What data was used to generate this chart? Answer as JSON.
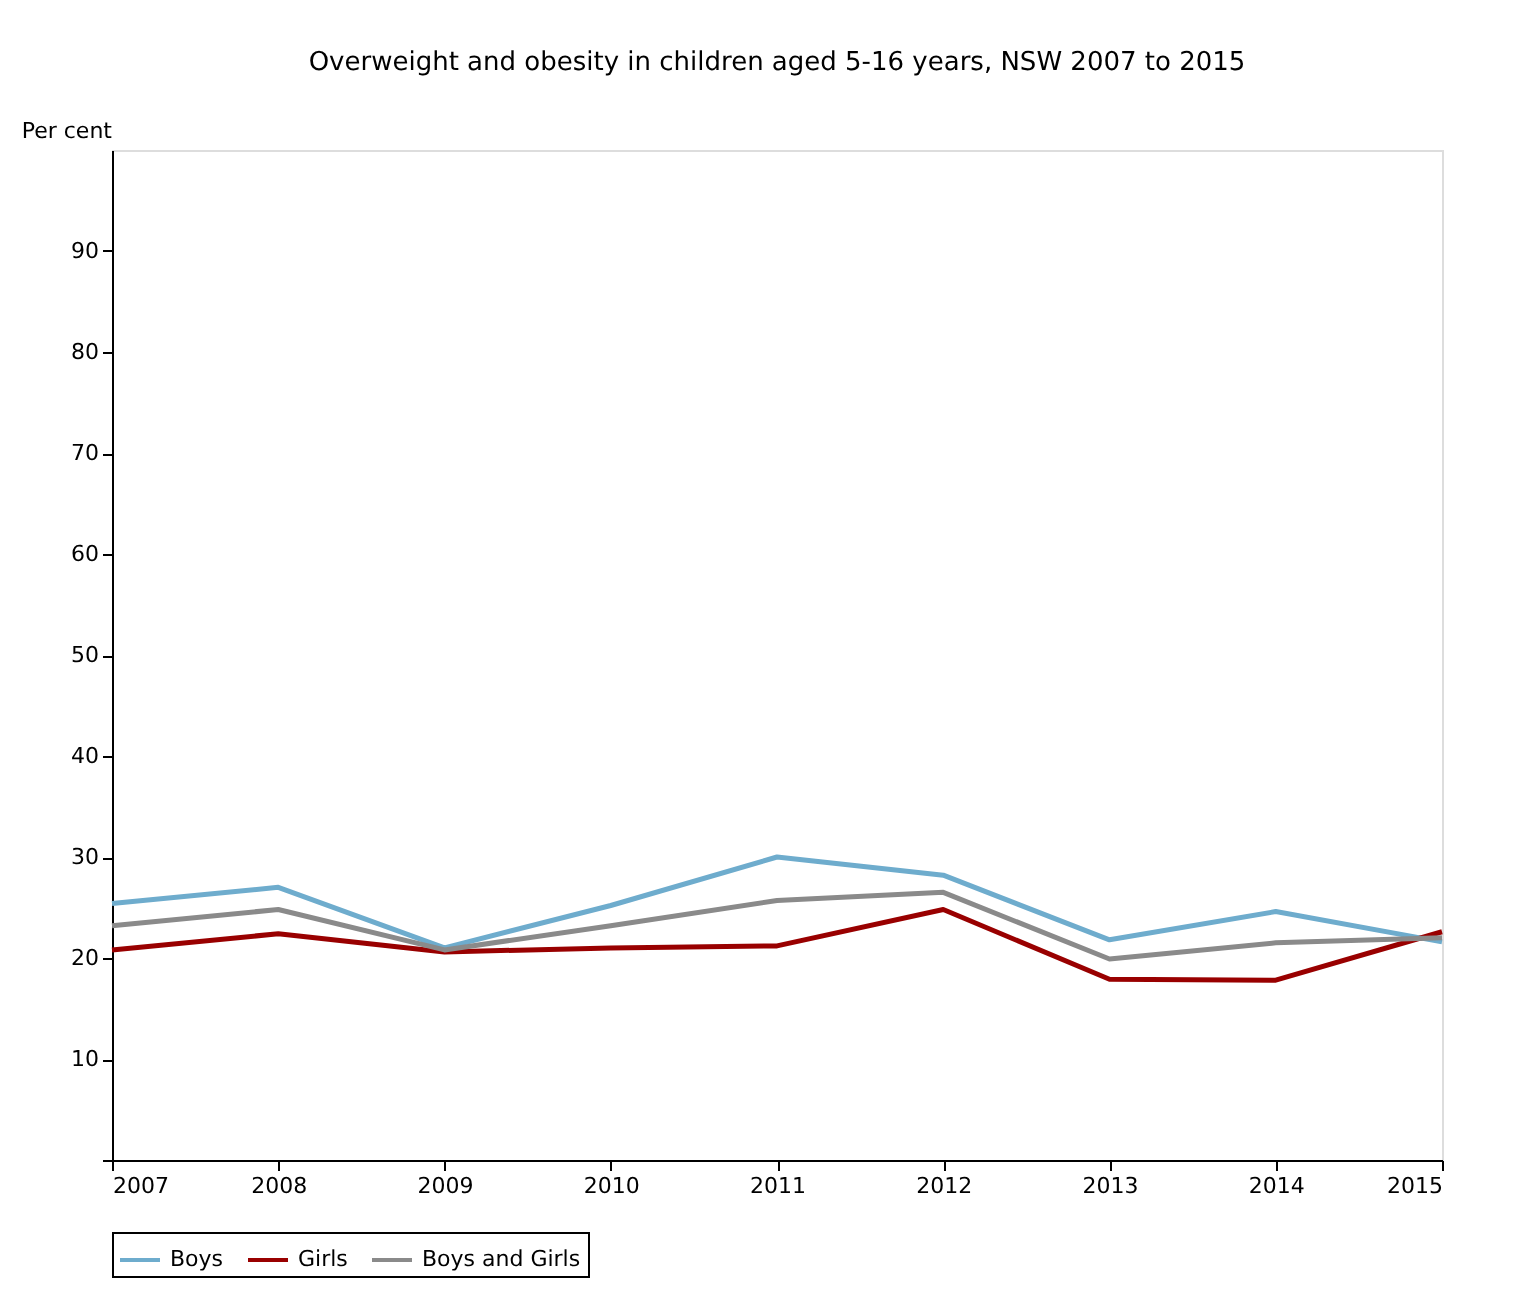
{
  "chart_data": {
    "type": "line",
    "title": "Overweight and obesity in children aged 5-16 years, NSW 2007 to 2015",
    "ylabel": "Per cent",
    "x": [
      2007,
      2008,
      2009,
      2010,
      2011,
      2012,
      2013,
      2014,
      2015
    ],
    "xlim": [
      2007,
      2015
    ],
    "xticks": [
      2007,
      2008,
      2009,
      2010,
      2011,
      2012,
      2013,
      2014,
      2015
    ],
    "ylim": [
      0,
      100
    ],
    "yticks": [
      {
        "value": 0,
        "label": null
      },
      10,
      20,
      30,
      40,
      50,
      60,
      70,
      80,
      90
    ],
    "grid": false,
    "legend": "bottom",
    "marker": "none",
    "line_style": "solid",
    "series": [
      {
        "name": "Boys",
        "color": "#6eaccd",
        "values": [
          25.4,
          27.0,
          21.0,
          25.2,
          30.0,
          28.2,
          21.8,
          24.6,
          21.6
        ]
      },
      {
        "name": "Girls",
        "color": "#990000",
        "values": [
          20.8,
          22.4,
          20.6,
          21.0,
          21.2,
          24.8,
          17.9,
          17.8,
          22.6
        ]
      },
      {
        "name": "Boys and Girls",
        "color": "#8a8a8a",
        "values": [
          23.2,
          24.8,
          20.8,
          23.2,
          25.7,
          26.5,
          19.9,
          21.5,
          22.0
        ]
      }
    ]
  }
}
